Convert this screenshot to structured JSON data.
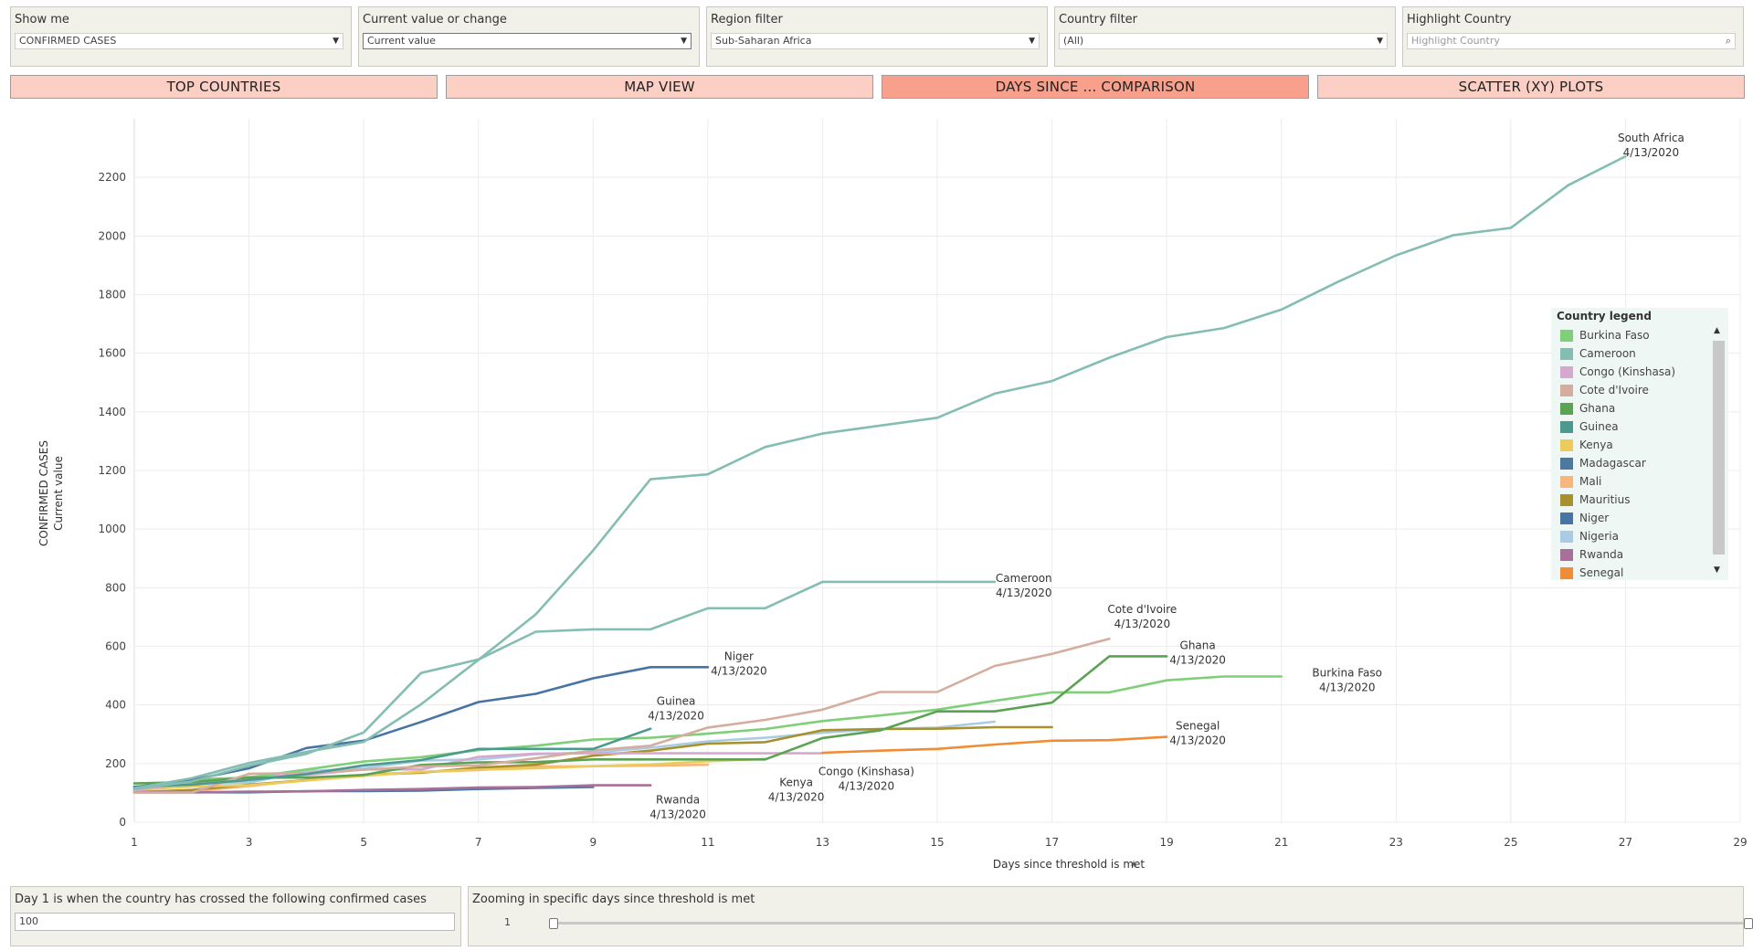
{
  "filters": [
    {
      "title": "Show me",
      "value": "CONFIRMED CASES",
      "icon": "chevron-down-icon"
    },
    {
      "title": "Current value or change",
      "value": "Current value",
      "icon": "chevron-down-icon"
    },
    {
      "title": "Region filter",
      "value": "Sub-Saharan Africa",
      "icon": "chevron-down-icon"
    },
    {
      "title": "Country filter",
      "value": "(All)",
      "icon": "chevron-down-icon"
    },
    {
      "title": "Highlight Country",
      "placeholder": "Highlight Country",
      "icon": "search-icon"
    }
  ],
  "tabs": [
    {
      "label": "TOP COUNTRIES",
      "active": false
    },
    {
      "label": "MAP VIEW",
      "active": false
    },
    {
      "label": "DAYS SINCE ... COMPARISON",
      "active": true
    },
    {
      "label": "SCATTER (XY) PLOTS",
      "active": false
    }
  ],
  "legend": {
    "title": "Country legend",
    "items": [
      {
        "name": "Burkina Faso",
        "color": "#7fcf78"
      },
      {
        "name": "Cameroon",
        "color": "#84bdb2"
      },
      {
        "name": "Congo (Kinshasa)",
        "color": "#d5a9cf"
      },
      {
        "name": "Cote d'Ivoire",
        "color": "#d4ad9e"
      },
      {
        "name": "Ghana",
        "color": "#5ba352"
      },
      {
        "name": "Guinea",
        "color": "#4b9a90"
      },
      {
        "name": "Kenya",
        "color": "#eccb5c"
      },
      {
        "name": "Madagascar",
        "color": "#4c78a2"
      },
      {
        "name": "Mali",
        "color": "#f8b67c"
      },
      {
        "name": "Mauritius",
        "color": "#a8902d"
      },
      {
        "name": "Niger",
        "color": "#4874a3"
      },
      {
        "name": "Nigeria",
        "color": "#a9cce4"
      },
      {
        "name": "Rwanda",
        "color": "#a86f98"
      },
      {
        "name": "Senegal",
        "color": "#f08c35"
      }
    ]
  },
  "chart_data": {
    "type": "line",
    "xlabel": "Days since threshold is met",
    "ylabel": "CONFIRMED CASES",
    "ylabel2": "Current value",
    "xlim": [
      1,
      29
    ],
    "ylim": [
      0,
      2400
    ],
    "xticks": [
      "1",
      "3",
      "5",
      "7",
      "9",
      "11",
      "13",
      "15",
      "17",
      "19",
      "21",
      "23",
      "25",
      "27",
      "29"
    ],
    "yticks": [
      "0",
      "200",
      "400",
      "600",
      "800",
      "1000",
      "1200",
      "1400",
      "1600",
      "1800",
      "2000",
      "2200"
    ],
    "grid": true,
    "legend_position": "right",
    "series": [
      {
        "name": "South Africa",
        "color": "#84bdb2",
        "x": [
          1,
          2,
          3,
          4,
          5,
          6,
          7,
          8,
          9,
          10,
          11,
          12,
          13,
          14,
          15,
          16,
          17,
          18,
          19,
          20,
          21,
          22,
          23,
          24,
          25,
          26,
          27
        ],
        "y": [
          116,
          150,
          202,
          240,
          274,
          402,
          554,
          709,
          927,
          1170,
          1187,
          1280,
          1326,
          1353,
          1380,
          1462,
          1505,
          1585,
          1655,
          1686,
          1749,
          1845,
          1934,
          2003,
          2028,
          2173,
          2272
        ]
      },
      {
        "name": "Cameroon",
        "color": "#84bdb2",
        "x": [
          1,
          2,
          3,
          4,
          5,
          6,
          7,
          8,
          9,
          10,
          11,
          12,
          13,
          14,
          15,
          16
        ],
        "y": [
          113,
          139,
          193,
          233,
          306,
          509,
          555,
          650,
          658,
          658,
          730,
          730,
          820,
          820,
          820,
          820
        ]
      },
      {
        "name": "Niger",
        "color": "#4874a3",
        "x": [
          1,
          2,
          3,
          4,
          5,
          6,
          7,
          8,
          9,
          10,
          11
        ],
        "y": [
          120,
          144,
          184,
          253,
          278,
          342,
          410,
          438,
          491,
          529,
          529
        ]
      },
      {
        "name": "Guinea",
        "color": "#4b9a90",
        "x": [
          1,
          2,
          3,
          4,
          5,
          6,
          7,
          8,
          9,
          10
        ],
        "y": [
          121,
          128,
          144,
          164,
          194,
          212,
          250,
          250,
          250,
          319
        ]
      },
      {
        "name": "Cote d'Ivoire",
        "color": "#d4ad9e",
        "x": [
          1,
          2,
          3,
          4,
          5,
          6,
          7,
          8,
          9,
          10,
          11,
          12,
          13,
          14,
          15,
          16,
          17,
          18
        ],
        "y": [
          101,
          101,
          165,
          168,
          179,
          190,
          194,
          218,
          245,
          261,
          323,
          349,
          384,
          444,
          444,
          533,
          574,
          626
        ]
      },
      {
        "name": "Ghana",
        "color": "#5ba352",
        "x": [
          1,
          2,
          3,
          4,
          5,
          6,
          7,
          8,
          9,
          10,
          11,
          12,
          13,
          14,
          15,
          16,
          17,
          18,
          19
        ],
        "y": [
          132,
          137,
          152,
          152,
          161,
          195,
          204,
          205,
          214,
          214,
          214,
          214,
          287,
          313,
          378,
          378,
          408,
          566,
          566
        ]
      },
      {
        "name": "Burkina Faso",
        "color": "#7fcf78",
        "x": [
          1,
          2,
          3,
          4,
          5,
          6,
          7,
          8,
          9,
          10,
          11,
          12,
          13,
          14,
          15,
          16,
          17,
          18,
          19,
          20,
          21
        ],
        "y": [
          114,
          146,
          152,
          180,
          207,
          222,
          246,
          261,
          282,
          288,
          302,
          318,
          345,
          364,
          384,
          414,
          443,
          443,
          484,
          497,
          497
        ]
      },
      {
        "name": "Senegal",
        "color": "#f08c35",
        "x": [
          13,
          14,
          15,
          16,
          17,
          18,
          19
        ],
        "y": [
          237,
          244,
          250,
          265,
          278,
          280,
          291
        ]
      },
      {
        "name": "Congo (Kinshasa)",
        "color": "#d5a9cf",
        "x": [
          1,
          2,
          3,
          4,
          5,
          6,
          7,
          8,
          9,
          10,
          11,
          12,
          13
        ],
        "y": [
          109,
          134,
          154,
          161,
          180,
          180,
          223,
          234,
          235,
          235,
          235,
          235,
          235
        ]
      },
      {
        "name": "Kenya",
        "color": "#eccb5c",
        "x": [
          1,
          2,
          3,
          4,
          5,
          6,
          7,
          8,
          9,
          10,
          11,
          12
        ],
        "y": [
          110,
          122,
          126,
          142,
          158,
          172,
          179,
          184,
          191,
          197,
          208,
          216
        ]
      },
      {
        "name": "Rwanda",
        "color": "#a86f98",
        "x": [
          1,
          2,
          3,
          4,
          5,
          6,
          7,
          8,
          9,
          10
        ],
        "y": [
          102,
          102,
          104,
          105,
          110,
          113,
          118,
          120,
          126,
          126
        ]
      },
      {
        "name": "Mauritius",
        "color": "#a8902d",
        "x": [
          1,
          2,
          3,
          4,
          5,
          6,
          7,
          8,
          9,
          10,
          11,
          12,
          13,
          14,
          15,
          16,
          17
        ],
        "y": [
          102,
          110,
          128,
          143,
          161,
          169,
          186,
          196,
          227,
          244,
          268,
          273,
          314,
          318,
          319,
          324,
          324
        ]
      },
      {
        "name": "Nigeria",
        "color": "#a9cce4",
        "x": [
          1,
          2,
          3,
          4,
          5,
          6,
          7,
          8,
          9,
          10,
          11,
          12,
          13,
          14,
          15,
          16
        ],
        "y": [
          111,
          131,
          135,
          174,
          184,
          210,
          214,
          232,
          238,
          254,
          276,
          288,
          305,
          318,
          323,
          343
        ]
      },
      {
        "name": "Mali",
        "color": "#f8b67c",
        "x": [
          1,
          2,
          3,
          4,
          5,
          6,
          7,
          8,
          9,
          10,
          11
        ],
        "y": [
          105,
          106,
          123,
          144,
          162,
          171,
          178,
          190,
          191,
          193,
          196
        ]
      },
      {
        "name": "Madagascar",
        "color": "#4c78a2",
        "x": [
          1,
          2,
          3,
          4,
          5,
          6,
          7,
          8,
          9
        ],
        "y": [
          102,
          102,
          102,
          106,
          106,
          108,
          113,
          117,
          120
        ]
      }
    ],
    "annotations": [
      {
        "series": "South Africa",
        "lines": [
          "South Africa",
          "4/13/2020"
        ],
        "x": 27,
        "y": 2272
      },
      {
        "series": "Cameroon",
        "lines": [
          "Cameroon",
          "4/13/2020"
        ],
        "x": 16,
        "y": 820
      },
      {
        "series": "Cote d'Ivoire",
        "lines": [
          "Cote d'Ivoire",
          "4/13/2020"
        ],
        "x": 18,
        "y": 626
      },
      {
        "series": "Ghana",
        "lines": [
          "Ghana",
          "4/13/2020"
        ],
        "x": 19,
        "y": 566
      },
      {
        "series": "Burkina Faso",
        "lines": [
          "Burkina Faso",
          "4/13/2020"
        ],
        "x": 21,
        "y": 497
      },
      {
        "series": "Niger",
        "lines": [
          "Niger",
          "4/13/2020"
        ],
        "x": 11,
        "y": 529
      },
      {
        "series": "Guinea",
        "lines": [
          "Guinea",
          "4/13/2020"
        ],
        "x": 10,
        "y": 319
      },
      {
        "series": "Senegal",
        "lines": [
          "Senegal",
          "4/13/2020"
        ],
        "x": 19,
        "y": 291
      },
      {
        "series": "Rwanda",
        "lines": [
          "Rwanda",
          "4/13/2020"
        ],
        "x": 10,
        "y": 126
      },
      {
        "series": "Kenya",
        "lines": [
          "Kenya",
          "4/13/2020"
        ],
        "x": 12,
        "y": 216
      },
      {
        "series": "Congo (Kinshasa)",
        "lines": [
          "Congo (Kinshasa)",
          "4/13/2020"
        ],
        "x": 13,
        "y": 235
      }
    ]
  },
  "bottom": {
    "threshold_title": "Day 1 is when the country has crossed the following confirmed cases",
    "threshold_value": "100",
    "zoom_title": "Zooming in specific days since threshold is met",
    "zoom_min": "1",
    "zoom_max": "35",
    "zoom_min_value": 1,
    "zoom_max_value": 35,
    "zoom_range": [
      1,
      35
    ]
  }
}
